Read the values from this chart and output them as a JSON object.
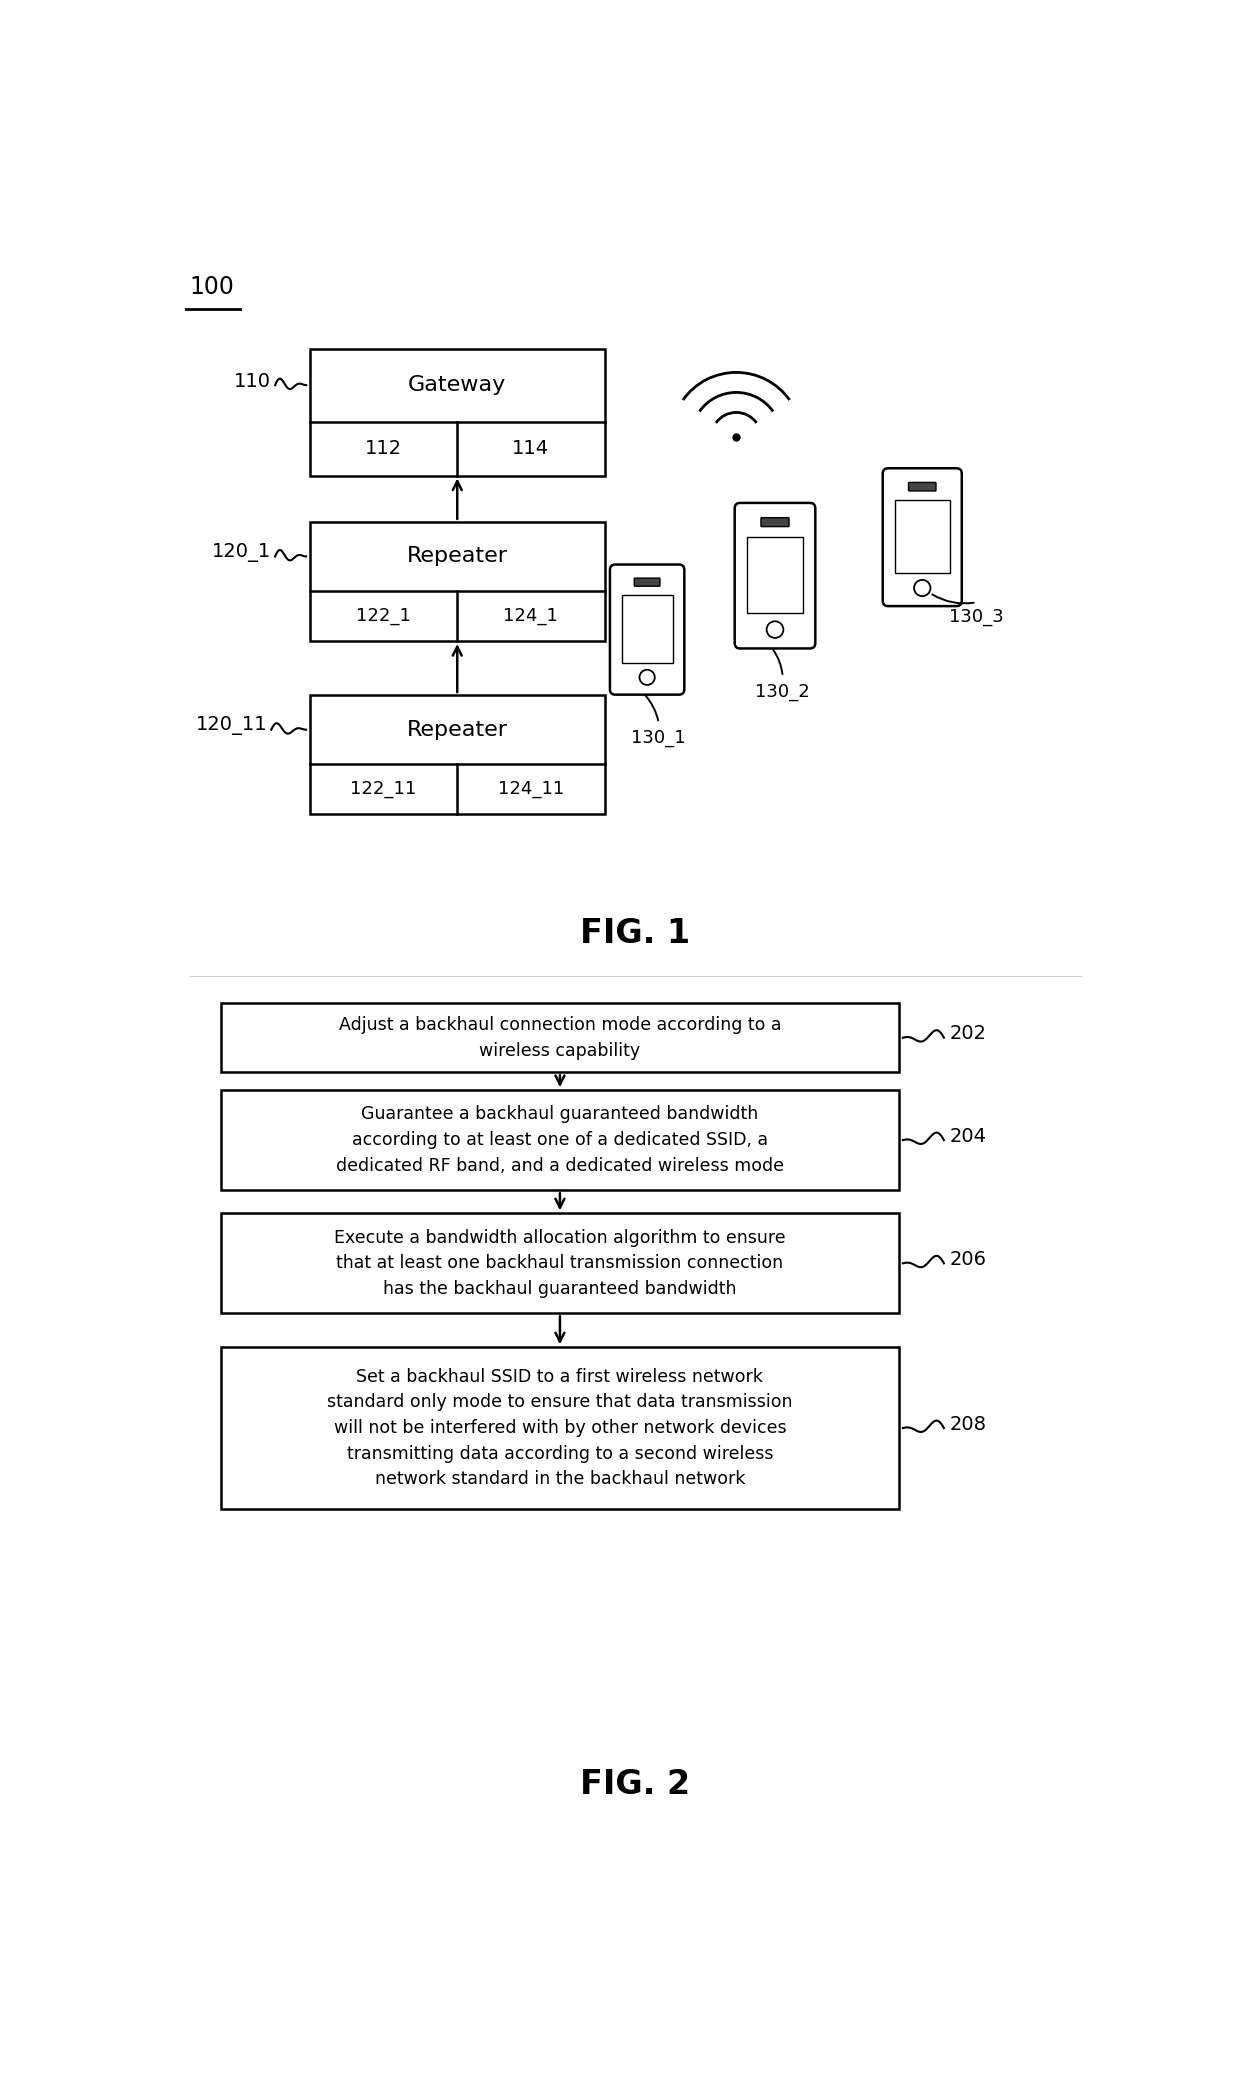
{
  "fig_width": 12.4,
  "fig_height": 20.96,
  "bg_color": "#ffffff",
  "line_color": "#000000",
  "text_color": "#000000",
  "fig1_label": "100",
  "fig1_caption": "FIG. 1",
  "fig2_caption": "FIG. 2",
  "gateway_label": "Gateway",
  "gateway_id": "110",
  "gateway_sub1": "112",
  "gateway_sub2": "114",
  "repeater1_label": "Repeater",
  "repeater1_id": "120_1",
  "repeater1_sub1": "122_1",
  "repeater1_sub2": "124_1",
  "repeater2_label": "Repeater",
  "repeater2_id": "120_11",
  "repeater2_sub1": "122_11",
  "repeater2_sub2": "124_11",
  "mobile1_id": "130_1",
  "mobile2_id": "130_2",
  "mobile3_id": "130_3",
  "flow_steps": [
    {
      "id": "202",
      "text": "Adjust a backhaul connection mode according to a\nwireless capability"
    },
    {
      "id": "204",
      "text": "Guarantee a backhaul guaranteed bandwidth\naccording to at least one of a dedicated SSID, a\ndedicated RF band, and a dedicated wireless mode"
    },
    {
      "id": "206",
      "text": "Execute a bandwidth allocation algorithm to ensure\nthat at least one backhaul transmission connection\nhas the backhaul guaranteed bandwidth"
    },
    {
      "id": "208",
      "text": "Set a backhaul SSID to a first wireless network\nstandard only mode to ensure that data transmission\nwill not be interfered with by other network devices\ntransmitting data according to a second wireless\nnetwork standard in the backhaul network"
    }
  ]
}
